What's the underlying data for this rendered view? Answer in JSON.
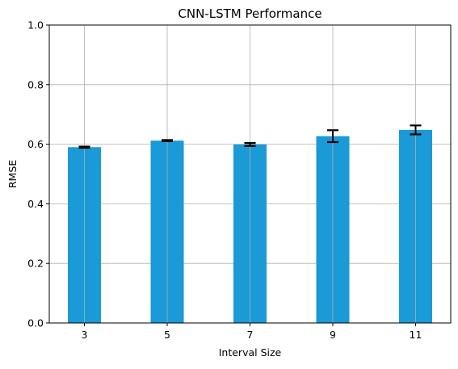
{
  "chart_data": {
    "type": "bar",
    "title": "CNN-LSTM Performance",
    "xlabel": "Interval Size",
    "ylabel": "RMSE",
    "categories": [
      "3",
      "5",
      "7",
      "9",
      "11"
    ],
    "values": [
      0.59,
      0.612,
      0.599,
      0.627,
      0.648
    ],
    "errors": [
      0.002,
      0.002,
      0.005,
      0.02,
      0.015
    ],
    "ylim": [
      0.0,
      1.0
    ],
    "yticks": [
      "0.0",
      "0.2",
      "0.4",
      "0.6",
      "0.8",
      "1.0"
    ],
    "ytick_values": [
      0.0,
      0.2,
      0.4,
      0.6,
      0.8,
      1.0
    ],
    "grid": true,
    "colors": {
      "bar": "#1a9ad6",
      "error": "#000000",
      "grid": "#b0b0b0",
      "axis": "#000000"
    }
  }
}
